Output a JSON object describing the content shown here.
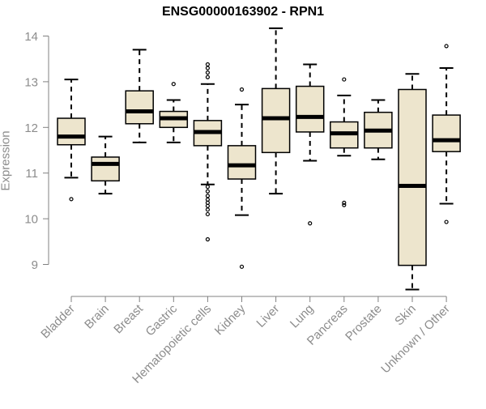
{
  "chart_data": {
    "type": "boxplot",
    "title": "ENSG00000163902 - RPN1",
    "xlabel": "",
    "ylabel": "Expression",
    "ylim": [
      8.5,
      14.3
    ],
    "yticks": [
      9,
      10,
      11,
      12,
      13,
      14
    ],
    "box_color": "#ede5cd",
    "categories": [
      "Bladder",
      "Brain",
      "Breast",
      "Gastric",
      "Hematopoietic cells",
      "Kidney",
      "Liver",
      "Lung",
      "Pancreas",
      "Prostate",
      "Skin",
      "Unknown / Other"
    ],
    "boxes": [
      {
        "whisker_low": 10.9,
        "q1": 11.62,
        "median": 11.8,
        "q3": 12.2,
        "whisker_high": 13.05,
        "outliers": [
          10.43
        ]
      },
      {
        "whisker_low": 10.55,
        "q1": 10.83,
        "median": 11.2,
        "q3": 11.35,
        "whisker_high": 11.8,
        "outliers": []
      },
      {
        "whisker_low": 11.67,
        "q1": 12.08,
        "median": 12.35,
        "q3": 12.8,
        "whisker_high": 13.7,
        "outliers": []
      },
      {
        "whisker_low": 11.67,
        "q1": 12.0,
        "median": 12.2,
        "q3": 12.35,
        "whisker_high": 12.6,
        "outliers": [
          12.95
        ]
      },
      {
        "whisker_low": 10.75,
        "q1": 11.6,
        "median": 11.9,
        "q3": 12.15,
        "whisker_high": 12.95,
        "outliers": [
          13.38,
          13.3,
          13.2,
          13.1,
          10.7,
          10.6,
          10.5,
          10.42,
          10.35,
          10.28,
          10.2,
          10.1,
          9.55
        ]
      },
      {
        "whisker_low": 10.08,
        "q1": 10.87,
        "median": 11.17,
        "q3": 11.6,
        "whisker_high": 12.5,
        "outliers": [
          12.83,
          8.95
        ]
      },
      {
        "whisker_low": 10.55,
        "q1": 11.45,
        "median": 12.2,
        "q3": 12.85,
        "whisker_high": 14.17,
        "outliers": []
      },
      {
        "whisker_low": 11.27,
        "q1": 11.9,
        "median": 12.23,
        "q3": 12.9,
        "whisker_high": 13.38,
        "outliers": [
          9.9
        ]
      },
      {
        "whisker_low": 11.38,
        "q1": 11.55,
        "median": 11.87,
        "q3": 12.12,
        "whisker_high": 12.7,
        "outliers": [
          13.05,
          10.35,
          10.3
        ]
      },
      {
        "whisker_low": 11.3,
        "q1": 11.55,
        "median": 11.93,
        "q3": 12.33,
        "whisker_high": 12.6,
        "outliers": []
      },
      {
        "whisker_low": 8.45,
        "q1": 8.98,
        "median": 10.72,
        "q3": 12.83,
        "whisker_high": 13.17,
        "outliers": []
      },
      {
        "whisker_low": 10.33,
        "q1": 11.47,
        "median": 11.72,
        "q3": 12.27,
        "whisker_high": 13.3,
        "outliers": [
          13.78,
          9.93
        ]
      }
    ]
  }
}
